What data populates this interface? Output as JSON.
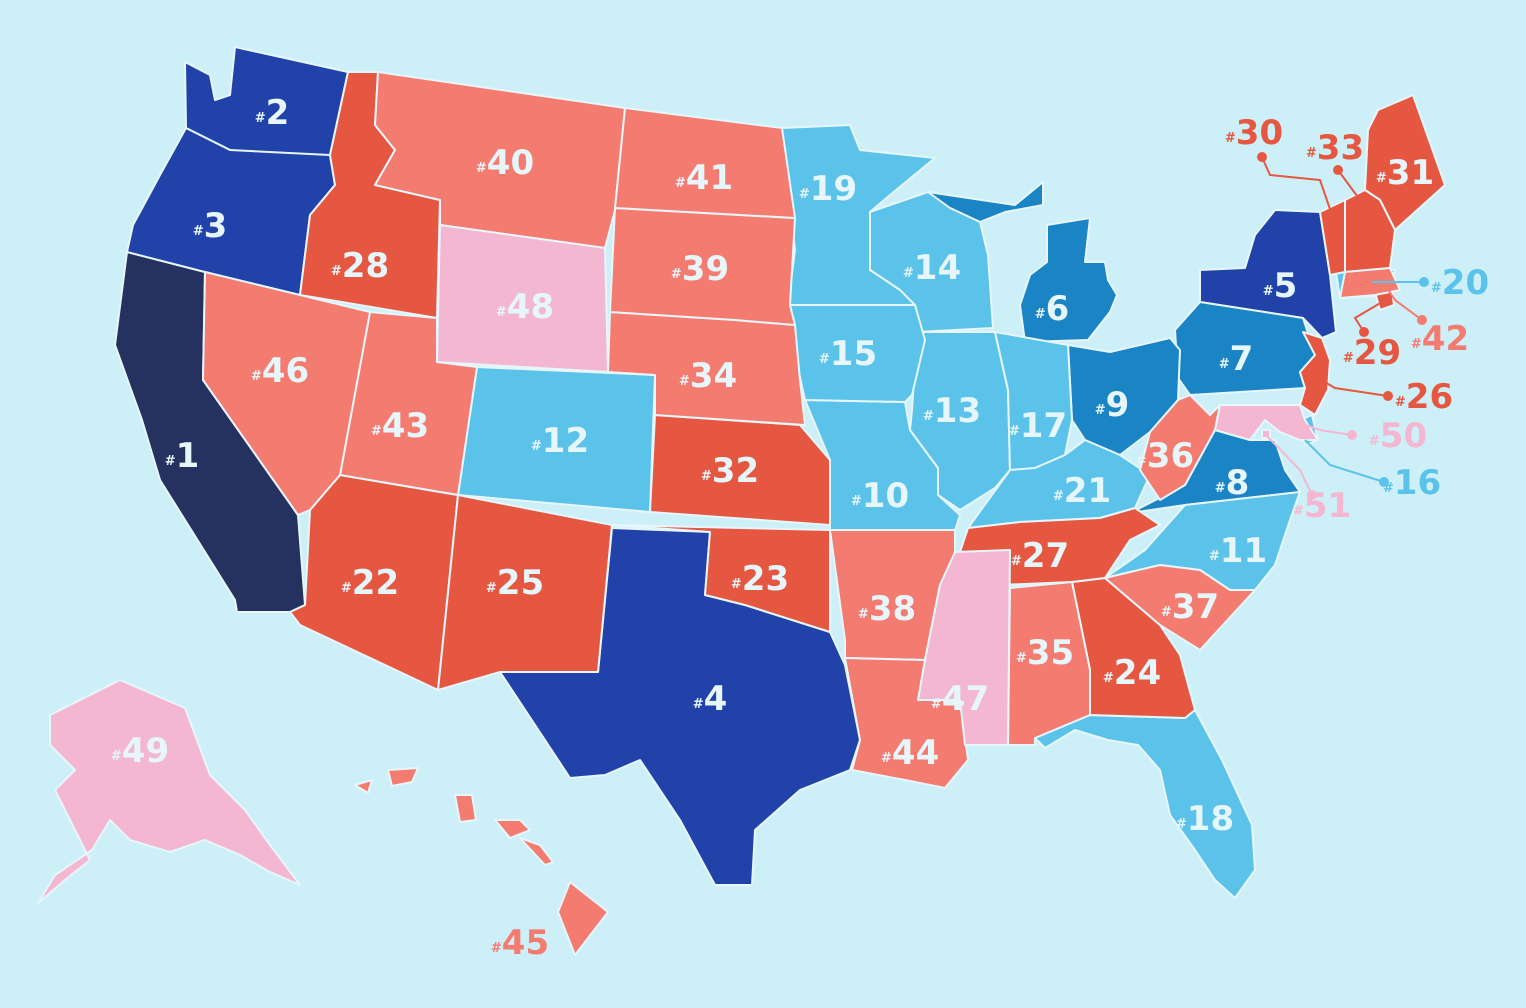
{
  "palette": {
    "background": "#cdeff7",
    "navy": "#25315f",
    "blue": "#2142a8",
    "medium_blue": "#1a84c4",
    "light_blue": "#5bc3ea",
    "red": "#e55741",
    "salmon": "#f47b6f",
    "pink": "#f4b7d2",
    "label_light": "#e6f6fb"
  },
  "hash_symbol": "#",
  "states": [
    {
      "rank": "1",
      "color": "navy"
    },
    {
      "rank": "2",
      "color": "blue"
    },
    {
      "rank": "3",
      "color": "blue"
    },
    {
      "rank": "4",
      "color": "blue"
    },
    {
      "rank": "5",
      "color": "blue"
    },
    {
      "rank": "6",
      "color": "medium_blue"
    },
    {
      "rank": "7",
      "color": "medium_blue"
    },
    {
      "rank": "8",
      "color": "medium_blue"
    },
    {
      "rank": "9",
      "color": "medium_blue"
    },
    {
      "rank": "10",
      "color": "light_blue"
    },
    {
      "rank": "11",
      "color": "light_blue"
    },
    {
      "rank": "12",
      "color": "light_blue"
    },
    {
      "rank": "13",
      "color": "light_blue"
    },
    {
      "rank": "14",
      "color": "light_blue"
    },
    {
      "rank": "15",
      "color": "light_blue"
    },
    {
      "rank": "16",
      "color": "light_blue"
    },
    {
      "rank": "17",
      "color": "light_blue"
    },
    {
      "rank": "18",
      "color": "light_blue"
    },
    {
      "rank": "19",
      "color": "light_blue"
    },
    {
      "rank": "20",
      "color": "light_blue"
    },
    {
      "rank": "21",
      "color": "light_blue"
    },
    {
      "rank": "22",
      "color": "red"
    },
    {
      "rank": "23",
      "color": "red"
    },
    {
      "rank": "24",
      "color": "red"
    },
    {
      "rank": "25",
      "color": "red"
    },
    {
      "rank": "26",
      "color": "red"
    },
    {
      "rank": "27",
      "color": "red"
    },
    {
      "rank": "28",
      "color": "red"
    },
    {
      "rank": "29",
      "color": "red"
    },
    {
      "rank": "30",
      "color": "red"
    },
    {
      "rank": "31",
      "color": "red"
    },
    {
      "rank": "32",
      "color": "red"
    },
    {
      "rank": "33",
      "color": "red"
    },
    {
      "rank": "34",
      "color": "salmon"
    },
    {
      "rank": "35",
      "color": "salmon"
    },
    {
      "rank": "36",
      "color": "salmon"
    },
    {
      "rank": "37",
      "color": "salmon"
    },
    {
      "rank": "38",
      "color": "salmon"
    },
    {
      "rank": "39",
      "color": "salmon"
    },
    {
      "rank": "40",
      "color": "salmon"
    },
    {
      "rank": "41",
      "color": "salmon"
    },
    {
      "rank": "42",
      "color": "salmon"
    },
    {
      "rank": "43",
      "color": "salmon"
    },
    {
      "rank": "44",
      "color": "salmon"
    },
    {
      "rank": "45",
      "color": "salmon"
    },
    {
      "rank": "46",
      "color": "salmon"
    },
    {
      "rank": "47",
      "color": "pink"
    },
    {
      "rank": "48",
      "color": "pink"
    },
    {
      "rank": "49",
      "color": "pink"
    },
    {
      "rank": "50",
      "color": "pink"
    },
    {
      "rank": "51",
      "color": "pink"
    }
  ]
}
